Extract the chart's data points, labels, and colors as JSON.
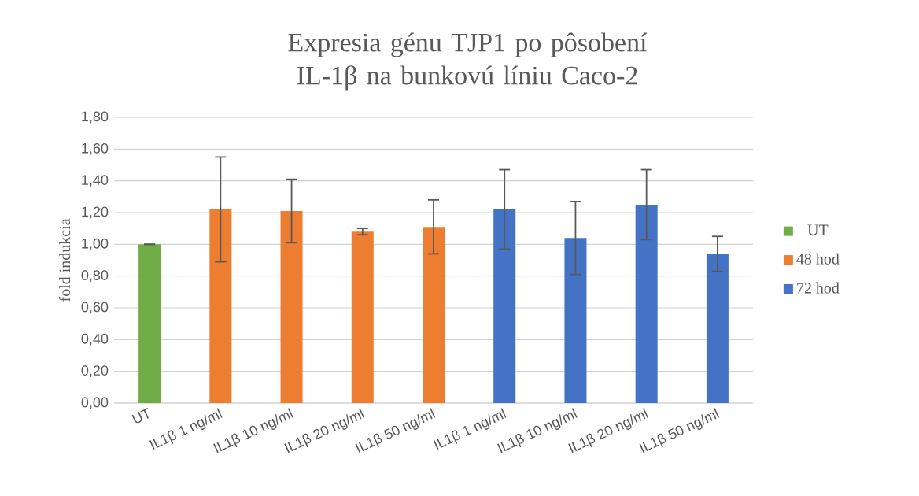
{
  "chart_data": {
    "type": "bar",
    "title": "Expresia génu TJP1 po pôsobení IL-1β na bunkovú líniu Caco-2",
    "ylabel": "fold indukcia",
    "categories": [
      "UT",
      "IL1β 1 ng/ml",
      "IL1β 10 ng/ml",
      "IL1β 20 ng/ml",
      "IL1β 50 ng/ml",
      "IL1β 1 ng/ml",
      "IL1β 10 ng/ml",
      "IL1β 20 ng/ml",
      "IL1β 50 ng/ml"
    ],
    "series": [
      {
        "name": "UT",
        "color": "#70ad47",
        "values": [
          1.0,
          null,
          null,
          null,
          null,
          null,
          null,
          null,
          null
        ],
        "errors": [
          0,
          null,
          null,
          null,
          null,
          null,
          null,
          null,
          null
        ]
      },
      {
        "name": "48 hod",
        "color": "#ed7d31",
        "values": [
          null,
          1.22,
          1.21,
          1.08,
          1.11,
          null,
          null,
          null,
          null
        ],
        "errors": [
          null,
          0.33,
          0.2,
          0.02,
          0.17,
          null,
          null,
          null,
          null
        ]
      },
      {
        "name": "72 hod",
        "color": "#4472c4",
        "values": [
          null,
          null,
          null,
          null,
          null,
          1.22,
          1.04,
          1.25,
          0.94
        ],
        "errors": [
          null,
          null,
          null,
          null,
          null,
          0.25,
          0.23,
          0.22,
          0.11
        ]
      }
    ],
    "ylim": [
      0,
      1.8
    ],
    "yticks": [
      {
        "value": 0,
        "label": "0,00"
      },
      {
        "value": 0.2,
        "label": "0,20"
      },
      {
        "value": 0.4,
        "label": "0,40"
      },
      {
        "value": 0.6,
        "label": "0,60"
      },
      {
        "value": 0.8,
        "label": "0,80"
      },
      {
        "value": 1.0,
        "label": "1,00"
      },
      {
        "value": 1.2,
        "label": "1,20"
      },
      {
        "value": 1.4,
        "label": "1,40"
      },
      {
        "value": 1.6,
        "label": "1,60"
      },
      {
        "value": 1.8,
        "label": "1,80"
      }
    ],
    "grid": "y",
    "legend": "right"
  }
}
